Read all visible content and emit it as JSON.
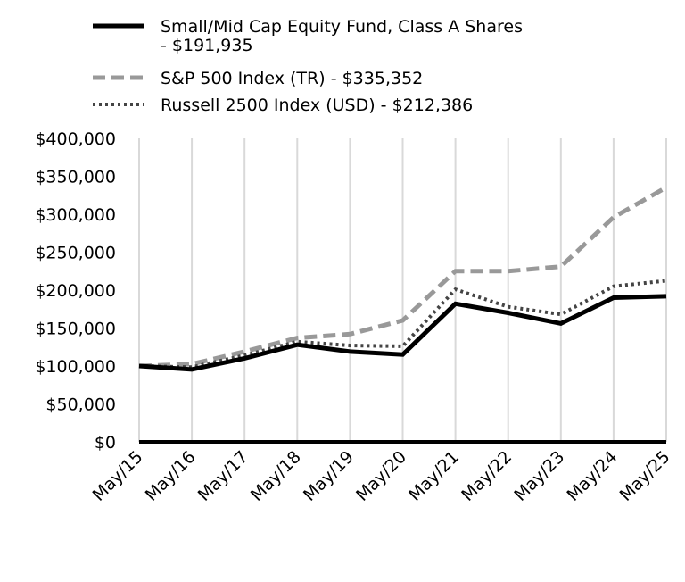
{
  "chart_data": {
    "type": "line",
    "title": "",
    "xlabel": "",
    "ylabel": "",
    "categories": [
      "May/15",
      "May/16",
      "May/17",
      "May/18",
      "May/19",
      "May/20",
      "May/21",
      "May/22",
      "May/23",
      "May/24",
      "May/25"
    ],
    "ylim": [
      0,
      400000
    ],
    "yticks": [
      0,
      50000,
      100000,
      150000,
      200000,
      250000,
      300000,
      350000,
      400000
    ],
    "ytick_labels": [
      "$0",
      "$50,000",
      "$100,000",
      "$150,000",
      "$200,000",
      "$250,000",
      "$300,000",
      "$350,000",
      "$400,000"
    ],
    "grid": {
      "vertical": true,
      "horizontal": false
    },
    "legend_position": "top",
    "series": [
      {
        "name_lines": [
          "Small/Mid Cap Equity Fund, Class A Shares",
          "- $191,935"
        ],
        "values": [
          100000,
          95500,
          110000,
          128000,
          119000,
          115000,
          182000,
          170000,
          156000,
          190000,
          191935
        ],
        "color": "#000000",
        "style": "solid"
      },
      {
        "name_lines": [
          "S&P 500 Index (TR) - $335,352"
        ],
        "values": [
          100000,
          102500,
          119000,
          137000,
          142000,
          160000,
          225000,
          225000,
          231000,
          296000,
          335352
        ],
        "color": "#999999",
        "style": "dashed"
      },
      {
        "name_lines": [
          "Russell 2500 Index (USD) - $212,386"
        ],
        "values": [
          100000,
          98500,
          114000,
          132000,
          127000,
          126000,
          201000,
          178000,
          168000,
          205000,
          212386
        ],
        "color": "#444444",
        "style": "dotted"
      }
    ]
  }
}
